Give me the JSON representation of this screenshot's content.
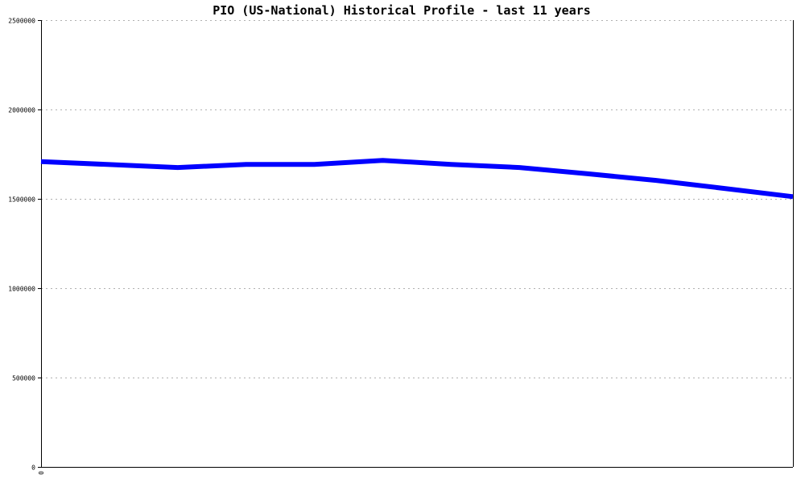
{
  "chart_data": {
    "type": "line",
    "title": "PIO (US-National) Historical Profile - last 11 years",
    "xlabel": "",
    "ylabel": "",
    "x_tick_labels": [
      "0"
    ],
    "y_ticks": [
      0,
      500000,
      1000000,
      1500000,
      2000000,
      2500000
    ],
    "y_tick_labels": [
      "0",
      "500000",
      "1000000",
      "1500000",
      "2000000",
      "2500000"
    ],
    "ylim": [
      0,
      2500000
    ],
    "xlim": [
      0,
      11
    ],
    "grid": true,
    "series": [
      {
        "name": "",
        "color": "#0000ff",
        "x": [
          0,
          1,
          2,
          3,
          4,
          5,
          6,
          7,
          8,
          9,
          10,
          11
        ],
        "y": [
          1708000,
          1692000,
          1675000,
          1693000,
          1693000,
          1715000,
          1693000,
          1675000,
          1640000,
          1603000,
          1558000,
          1512000
        ]
      }
    ]
  }
}
